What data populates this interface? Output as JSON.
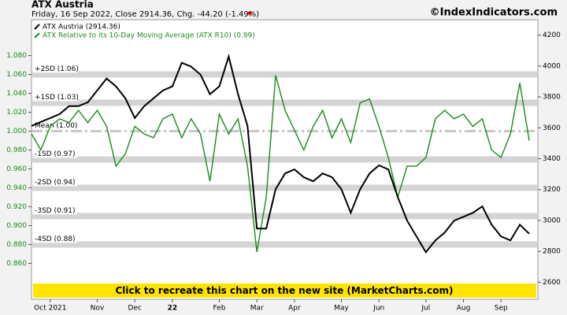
{
  "chart_data": {
    "type": "line",
    "title": "ATX Austria",
    "subtitle": "Friday, 16 Sep 2022, Close 2914.36, Chg. -44.20 (-1.49%)",
    "source": "©IndexIndicators.com",
    "banner": "Click to recreate this chart on the new site (MarketCharts.com)",
    "categories": [
      null,
      null,
      "Oct 2021",
      null,
      null,
      null,
      null,
      "Nov",
      null,
      null,
      null,
      "Dec",
      null,
      null,
      null,
      "22",
      null,
      null,
      null,
      null,
      "Feb",
      null,
      null,
      null,
      "Mar",
      null,
      null,
      null,
      "Apr",
      null,
      null,
      null,
      null,
      "May",
      null,
      null,
      null,
      "Jun",
      null,
      null,
      null,
      null,
      "Jul",
      null,
      null,
      null,
      "Aug",
      null,
      null,
      null,
      "Sep",
      null,
      null,
      null
    ],
    "series": [
      {
        "name": "ATX Austria (2914.36)",
        "color": "#000000",
        "axis": "y2",
        "values": [
          3612,
          3638,
          3663,
          3689,
          3740,
          3740,
          3765,
          3842,
          3919,
          3868,
          3791,
          3663,
          3740,
          3791,
          3842,
          3868,
          4021,
          3996,
          3944,
          3817,
          3868,
          4062,
          3817,
          3612,
          2948,
          2948,
          3203,
          3305,
          3331,
          3280,
          3254,
          3305,
          3280,
          3203,
          3050,
          3203,
          3305,
          3357,
          3331,
          3152,
          2999,
          2897,
          2795,
          2871,
          2922,
          2999,
          3024,
          3050,
          3091,
          2973,
          2897,
          2871,
          2973,
          2914.36
        ]
      },
      {
        "name": "ATX Relative to its 10-Day Moving Average (ATX R10) (0.99)",
        "color": "#1a8a1a",
        "values": [
          0.997,
          0.98,
          1.005,
          1.013,
          1.009,
          1.022,
          1.009,
          1.022,
          1.005,
          0.963,
          0.976,
          1.005,
          0.997,
          0.993,
          1.013,
          1.018,
          0.993,
          1.013,
          0.997,
          0.947,
          1.018,
          0.997,
          1.013,
          0.963,
          0.872,
          0.93,
          1.059,
          1.022,
          1.001,
          0.98,
          1.005,
          1.022,
          0.993,
          1.013,
          0.988,
          1.03,
          1.034,
          1.005,
          0.972,
          0.93,
          0.963,
          0.963,
          0.972,
          1.013,
          1.022,
          1.013,
          1.018,
          1.005,
          1.013,
          0.98,
          0.972,
          0.997,
          1.051,
          0.99
        ]
      }
    ],
    "ylim": [
      0.822,
      1.118
    ],
    "yticks": [
      {
        "value": 0.86,
        "label": "0.860"
      },
      {
        "value": 0.88,
        "label": "0.880"
      },
      {
        "value": 0.9,
        "label": "0.900"
      },
      {
        "value": 0.92,
        "label": "0.920"
      },
      {
        "value": 0.94,
        "label": "0.940"
      },
      {
        "value": 0.96,
        "label": "0.960"
      },
      {
        "value": 0.98,
        "label": "0.980"
      },
      {
        "value": 1.0,
        "label": "1.000"
      },
      {
        "value": 1.02,
        "label": "1.020"
      },
      {
        "value": 1.04,
        "label": "1.040"
      },
      {
        "value": 1.06,
        "label": "1.060"
      },
      {
        "value": 1.08,
        "label": "1.080"
      }
    ],
    "y2lim": [
      2490,
      4300
    ],
    "y2ticks": [
      2600,
      2800,
      3000,
      3200,
      3400,
      3600,
      3800,
      4000,
      4200
    ],
    "bands": [
      {
        "value": 1.06,
        "label": "+2SD (1.06)"
      },
      {
        "value": 1.03,
        "label": "+1SD (1.03)"
      },
      {
        "value": 1.0,
        "label": "Mean (1.00)"
      },
      {
        "value": 0.97,
        "label": "-1SD (0.97)"
      },
      {
        "value": 0.94,
        "label": "-2SD (0.94)"
      },
      {
        "value": 0.91,
        "label": "-3SD (0.91)"
      },
      {
        "value": 0.88,
        "label": "-4SD (0.88)"
      }
    ]
  }
}
